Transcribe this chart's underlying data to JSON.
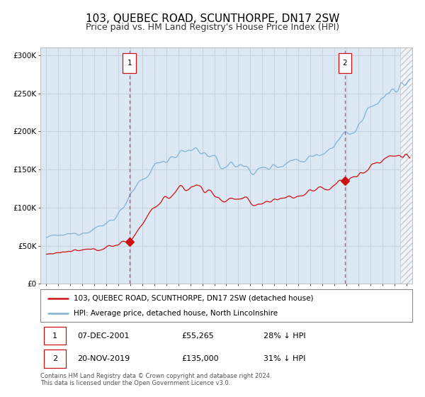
{
  "title": "103, QUEBEC ROAD, SCUNTHORPE, DN17 2SW",
  "subtitle": "Price paid vs. HM Land Registry's House Price Index (HPI)",
  "title_fontsize": 11,
  "subtitle_fontsize": 9,
  "bg_color": "#ffffff",
  "plot_bg_color": "#dde8f5",
  "grid_color": "#c8d4e0",
  "hpi_color": "#7fb3d3",
  "price_color": "#cc1111",
  "sale1_date_num": 2001.92,
  "sale1_price": 55265,
  "sale1_label": "1",
  "sale1_display": "07-DEC-2001",
  "sale1_amount": "£55,265",
  "sale1_pct": "28% ↓ HPI",
  "sale2_date_num": 2019.88,
  "sale2_price": 135000,
  "sale2_label": "2",
  "sale2_display": "20-NOV-2019",
  "sale2_amount": "£135,000",
  "sale2_pct": "31% ↓ HPI",
  "xmin": 1994.5,
  "xmax": 2025.5,
  "ymin": 0,
  "ymax": 310000,
  "yticks": [
    0,
    50000,
    100000,
    150000,
    200000,
    250000,
    300000
  ],
  "legend_line1": "103, QUEBEC ROAD, SCUNTHORPE, DN17 2SW (detached house)",
  "legend_line2": "HPI: Average price, detached house, North Lincolnshire",
  "footer1": "Contains HM Land Registry data © Crown copyright and database right 2024.",
  "footer2": "This data is licensed under the Open Government Licence v3.0."
}
